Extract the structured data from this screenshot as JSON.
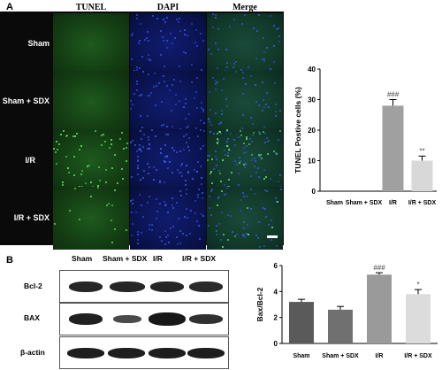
{
  "panel_a": {
    "letter": "A",
    "columns": [
      "TUNEL",
      "DAPI",
      "Merge"
    ],
    "rows": [
      "Sham",
      "Sham + SDX",
      "I/R",
      "I/R + SDX"
    ]
  },
  "panel_b": {
    "letter": "B",
    "blot_lanes": [
      "Sham",
      "Sham + SDX",
      "I/R",
      "I/R + SDX"
    ],
    "blot_rows": [
      "Bcl-2",
      "BAX",
      "β-actin"
    ]
  },
  "chart_data": [
    {
      "type": "bar",
      "categories": [
        "Sham",
        "Sham + SDX",
        "I/R",
        "I/R + SDX"
      ],
      "values": [
        0,
        0,
        28,
        10
      ],
      "errors": [
        0,
        0,
        2,
        1.5
      ],
      "annotations": [
        "",
        "",
        "###",
        "**"
      ],
      "ylabel": "TUNEL Postive cells (%)",
      "ylim": [
        0,
        40
      ],
      "yticks": [
        0,
        10,
        20,
        30,
        40
      ],
      "bar_colors": [
        "#9a9a9a",
        "#b5b5b5",
        "#a0a0a0",
        "#d8d8d8"
      ]
    },
    {
      "type": "bar",
      "categories": [
        "Sham",
        "Sham + SDX",
        "I/R",
        "I/R + SDX"
      ],
      "values": [
        3.2,
        2.6,
        5.3,
        3.8
      ],
      "errors": [
        0.2,
        0.25,
        0.15,
        0.35
      ],
      "annotations": [
        "",
        "",
        "###",
        "*"
      ],
      "ylabel": "Bax/Bcl-2",
      "ylim": [
        0,
        6
      ],
      "yticks": [
        0,
        2,
        4,
        6
      ],
      "bar_colors": [
        "#5a5a5a",
        "#707070",
        "#9a9a9a",
        "#dcdcdc"
      ]
    }
  ]
}
